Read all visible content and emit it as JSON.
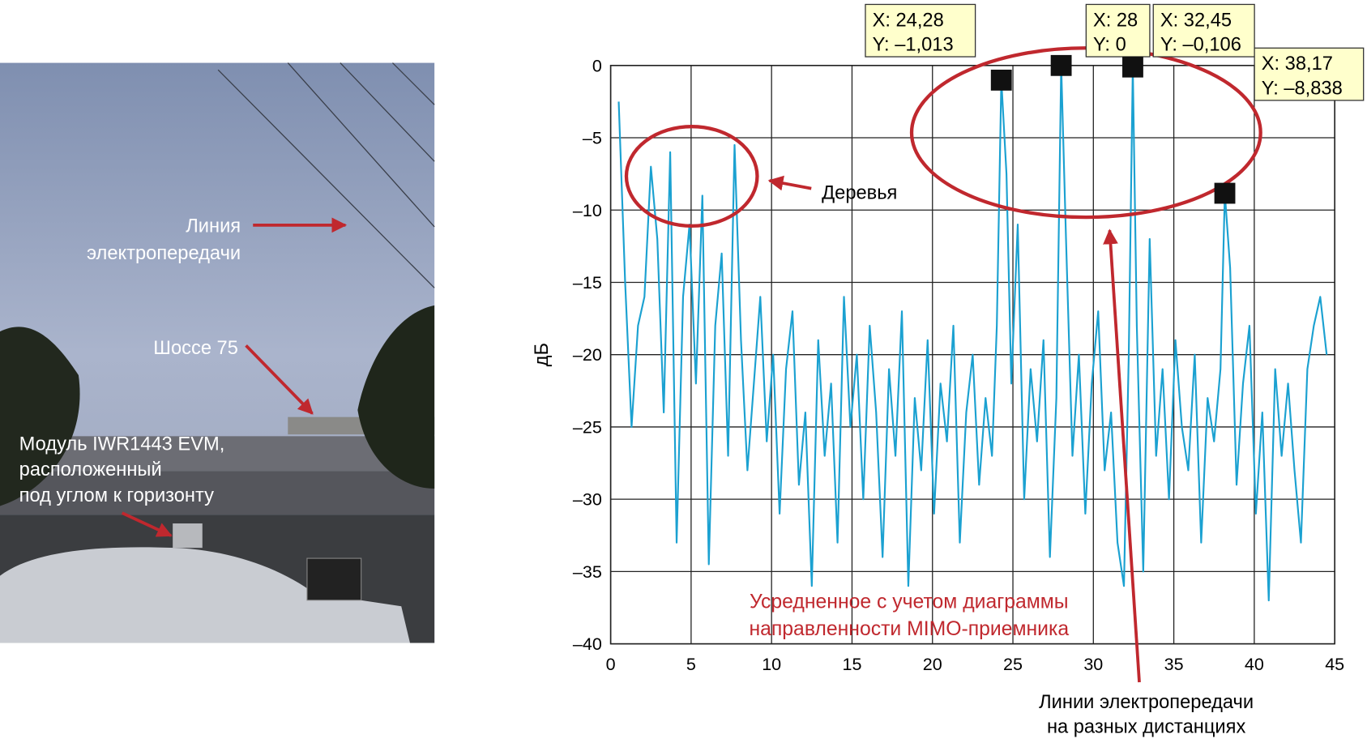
{
  "photo": {
    "power_line_label": [
      "Линия",
      "электропередачи"
    ],
    "highway_label": "Шоссе 75",
    "module_label": [
      "Модуль IWR1443 EVM,",
      "расположенный",
      "под углом к горизонту"
    ]
  },
  "chart_data": {
    "type": "line",
    "ylabel": "дБ",
    "x": [
      0.5,
      0.9,
      1.3,
      1.7,
      2.1,
      2.5,
      2.9,
      3.3,
      3.7,
      4.1,
      4.5,
      4.9,
      5.3,
      5.7,
      6.1,
      6.5,
      6.9,
      7.3,
      7.7,
      8.1,
      8.5,
      8.9,
      9.3,
      9.7,
      10.1,
      10.5,
      10.9,
      11.3,
      11.7,
      12.1,
      12.5,
      12.9,
      13.3,
      13.7,
      14.1,
      14.5,
      14.9,
      15.3,
      15.7,
      16.1,
      16.5,
      16.9,
      17.3,
      17.7,
      18.1,
      18.5,
      18.9,
      19.3,
      19.7,
      20.1,
      20.5,
      20.9,
      21.3,
      21.7,
      22.1,
      22.5,
      22.9,
      23.3,
      23.7,
      24.0,
      24.28,
      24.6,
      24.9,
      25.3,
      25.7,
      26.1,
      26.5,
      26.9,
      27.3,
      27.7,
      28,
      28.3,
      28.7,
      29.1,
      29.5,
      29.9,
      30.3,
      30.7,
      31.1,
      31.5,
      31.9,
      32.2,
      32.45,
      32.7,
      33.1,
      33.5,
      33.9,
      34.3,
      34.7,
      35.1,
      35.5,
      35.9,
      36.3,
      36.7,
      37.1,
      37.5,
      37.9,
      38.17,
      38.5,
      38.9,
      39.3,
      39.7,
      40.1,
      40.5,
      40.9,
      41.3,
      41.7,
      42.1,
      42.5,
      42.9,
      43.3,
      43.7,
      44.1,
      44.5
    ],
    "series": [
      {
        "color": "#1ba1d1",
        "values": [
          -2.5,
          -15,
          -25,
          -18,
          -16,
          -7,
          -12,
          -24,
          -6,
          -33,
          -16,
          -11,
          -22,
          -9,
          -34.5,
          -18,
          -13,
          -27,
          -5.5,
          -19,
          -28,
          -22,
          -16,
          -26,
          -20,
          -31,
          -21,
          -17,
          -29,
          -24,
          -36,
          -19,
          -27,
          -22,
          -33,
          -16,
          -25,
          -20,
          -30,
          -18,
          -24,
          -34,
          -21,
          -27,
          -17,
          -36,
          -23,
          -28,
          -19,
          -31,
          -22,
          -26,
          -18,
          -33,
          -24,
          -20,
          -29,
          -23,
          -27,
          -18,
          -1.013,
          -7.5,
          -22,
          -11,
          -30,
          -21,
          -26,
          -19,
          -34,
          -23,
          0,
          -12,
          -27,
          -20,
          -31,
          -22,
          -17,
          -28,
          -24,
          -33,
          -36,
          -20,
          -0.106,
          -18,
          -35,
          -12,
          -27,
          -21,
          -30,
          -19,
          -25,
          -28,
          -20,
          -33,
          -23,
          -26,
          -21,
          -8.838,
          -14,
          -29,
          -22,
          -18,
          -31,
          -24,
          -37,
          -21,
          -27,
          -22,
          -28,
          -33,
          -21,
          -18,
          -16,
          -20
        ]
      }
    ],
    "xlim": [
      0,
      45
    ],
    "ylim": [
      -40,
      0
    ],
    "xticks": [
      0,
      5,
      10,
      15,
      20,
      25,
      30,
      35,
      40,
      45
    ],
    "yticks": [
      0,
      {
        "value": -5,
        "label": "–5"
      },
      {
        "value": -10,
        "label": "–10"
      },
      {
        "value": -15,
        "label": "–15"
      },
      {
        "value": -20,
        "label": "–20"
      },
      {
        "value": -25,
        "label": "–25"
      },
      {
        "value": -30,
        "label": "–30"
      },
      {
        "value": -35,
        "label": "–35"
      },
      {
        "value": -40,
        "label": "–40"
      }
    ],
    "grid": true,
    "datatips": [
      {
        "x": 24.28,
        "y": -1.013,
        "label_x": "X: 24,28",
        "label_y": "Y: –1,013"
      },
      {
        "x": 28,
        "y": 0,
        "label_x": "X: 28",
        "label_y": "Y: 0"
      },
      {
        "x": 32.45,
        "y": -0.106,
        "label_x": "X: 32,45",
        "label_y": "Y: –0,106"
      },
      {
        "x": 38.17,
        "y": -8.838,
        "label_x": "X: 38,17",
        "label_y": "Y: –8,838"
      }
    ],
    "annotations": {
      "trees": "Деревья",
      "averaged": [
        "Усредненное с учетом диаграммы",
        "направленности MIMO-приемника"
      ],
      "power_lines": [
        "Линии электропередачи",
        "на разных дистанциях"
      ]
    }
  }
}
